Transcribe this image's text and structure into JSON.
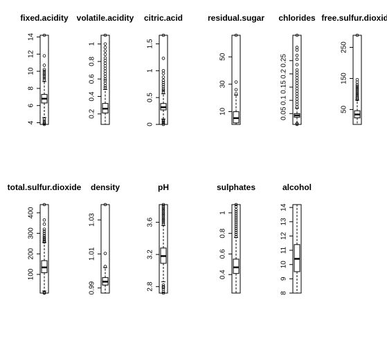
{
  "chart_data": [
    {
      "type": "boxplot",
      "title": "fixed.acidity",
      "ylim": [
        3.8,
        14.2
      ],
      "ticks": [
        4,
        6,
        8,
        10,
        12,
        14
      ],
      "whisker_low": 4.6,
      "q1": 6.3,
      "median": 6.8,
      "q3": 7.3,
      "whisker_high": 8.8,
      "outliers_low": [
        3.8,
        3.9,
        4.0,
        4.2,
        4.4
      ],
      "outliers_high": [
        9.0,
        9.2,
        9.4,
        9.6,
        9.8,
        10.0,
        10.2,
        10.7,
        11.8,
        14.2
      ]
    },
    {
      "type": "boxplot",
      "title": "volatile.acidity",
      "ylim": [
        0.08,
        1.1
      ],
      "ticks": [
        0.2,
        0.4,
        0.6,
        0.8,
        1.0
      ],
      "whisker_low": 0.08,
      "q1": 0.21,
      "median": 0.26,
      "q3": 0.32,
      "whisker_high": 0.48,
      "outliers_low": [],
      "outliers_high": [
        0.5,
        0.52,
        0.55,
        0.58,
        0.6,
        0.63,
        0.66,
        0.69,
        0.72,
        0.75,
        0.78,
        0.81,
        0.84,
        0.88,
        0.92,
        0.96,
        1.0,
        1.1
      ]
    },
    {
      "type": "boxplot",
      "title": "citric.acid",
      "ylim": [
        0,
        1.66
      ],
      "ticks": [
        0.0,
        0.5,
        1.0,
        1.5
      ],
      "whisker_low": 0.1,
      "q1": 0.27,
      "median": 0.32,
      "q3": 0.39,
      "whisker_high": 0.57,
      "outliers_low": [
        0.0,
        0.02,
        0.04,
        0.06,
        0.08
      ],
      "outliers_high": [
        0.6,
        0.63,
        0.66,
        0.7,
        0.74,
        0.78,
        0.82,
        0.88,
        0.95,
        1.0,
        1.23,
        1.66
      ]
    },
    {
      "type": "boxplot",
      "title": "residual.sugar",
      "ylim": [
        0.6,
        65.8
      ],
      "ticks": [
        10,
        30,
        50
      ],
      "whisker_low": 0.6,
      "q1": 1.7,
      "median": 5.2,
      "q3": 9.9,
      "whisker_high": 22,
      "outliers_low": [],
      "outliers_high": [
        23,
        26,
        31.6,
        65.8
      ]
    },
    {
      "type": "boxplot",
      "title": "chlorides",
      "ylim": [
        0.009,
        0.346
      ],
      "ticks": [
        0.05,
        0.1,
        0.15,
        0.2,
        0.25
      ],
      "whisker_low": 0.009,
      "q1": 0.036,
      "median": 0.043,
      "q3": 0.05,
      "whisker_high": 0.07,
      "outliers_low": [
        0.009,
        0.012
      ],
      "outliers_high": [
        0.075,
        0.085,
        0.095,
        0.105,
        0.115,
        0.125,
        0.135,
        0.145,
        0.155,
        0.165,
        0.175,
        0.185,
        0.195,
        0.205,
        0.215,
        0.235,
        0.255,
        0.27,
        0.29,
        0.3,
        0.346
      ]
    },
    {
      "type": "boxplot",
      "title": "free.sulfur.dioxide",
      "ylim": [
        2,
        289
      ],
      "ticks": [
        50,
        150,
        250
      ],
      "whisker_low": 2,
      "q1": 23,
      "median": 34,
      "q3": 46,
      "whisker_high": 80,
      "outliers_low": [],
      "outliers_high": [
        82,
        86,
        90,
        95,
        100,
        105,
        110,
        115,
        120,
        125,
        130,
        138,
        146,
        289
      ]
    },
    {
      "type": "boxplot",
      "title": "total.sulfur.dioxide",
      "ylim": [
        9,
        440
      ],
      "ticks": [
        100,
        200,
        300,
        400
      ],
      "whisker_low": 19,
      "q1": 108,
      "median": 134,
      "q3": 167,
      "whisker_high": 255,
      "outliers_low": [
        9,
        10,
        11
      ],
      "outliers_high": [
        258,
        262,
        268,
        275,
        282,
        290,
        300,
        310,
        320,
        345,
        365,
        440
      ]
    },
    {
      "type": "boxplot",
      "title": "density",
      "ylim": [
        0.987,
        1.039
      ],
      "ticks": [
        0.99,
        1.01,
        1.03
      ],
      "whisker_low": 0.987,
      "q1": 0.9917,
      "median": 0.9937,
      "q3": 0.9961,
      "whisker_high": 1.002,
      "outliers_low": [],
      "outliers_high": [
        1.0026,
        1.0103,
        1.039
      ]
    },
    {
      "type": "boxplot",
      "title": "pH",
      "ylim": [
        2.72,
        3.82
      ],
      "ticks": [
        2.8,
        3.2,
        3.6
      ],
      "whisker_low": 2.86,
      "q1": 3.09,
      "median": 3.18,
      "q3": 3.28,
      "whisker_high": 3.56,
      "outliers_low": [
        2.72,
        2.74,
        2.77,
        2.79,
        2.8,
        2.82
      ],
      "outliers_high": [
        3.58,
        3.6,
        3.62,
        3.64,
        3.66,
        3.68,
        3.7,
        3.72,
        3.74,
        3.76,
        3.78,
        3.8,
        3.82
      ]
    },
    {
      "type": "boxplot",
      "title": "sulphates",
      "ylim": [
        0.22,
        1.08
      ],
      "ticks": [
        0.4,
        0.6,
        0.8,
        1.0
      ],
      "whisker_low": 0.22,
      "q1": 0.41,
      "median": 0.47,
      "q3": 0.55,
      "whisker_high": 0.76,
      "outliers_low": [],
      "outliers_high": [
        0.77,
        0.79,
        0.81,
        0.83,
        0.85,
        0.87,
        0.89,
        0.91,
        0.93,
        0.95,
        0.97,
        0.99,
        1.01,
        1.03,
        1.06,
        1.08
      ]
    },
    {
      "type": "boxplot",
      "title": "alcohol",
      "ylim": [
        8,
        14.2
      ],
      "ticks": [
        8,
        9,
        10,
        11,
        12,
        13,
        14
      ],
      "whisker_low": 8,
      "q1": 9.5,
      "median": 10.4,
      "q3": 11.4,
      "whisker_high": 14.2,
      "outliers_low": [],
      "outliers_high": []
    }
  ]
}
